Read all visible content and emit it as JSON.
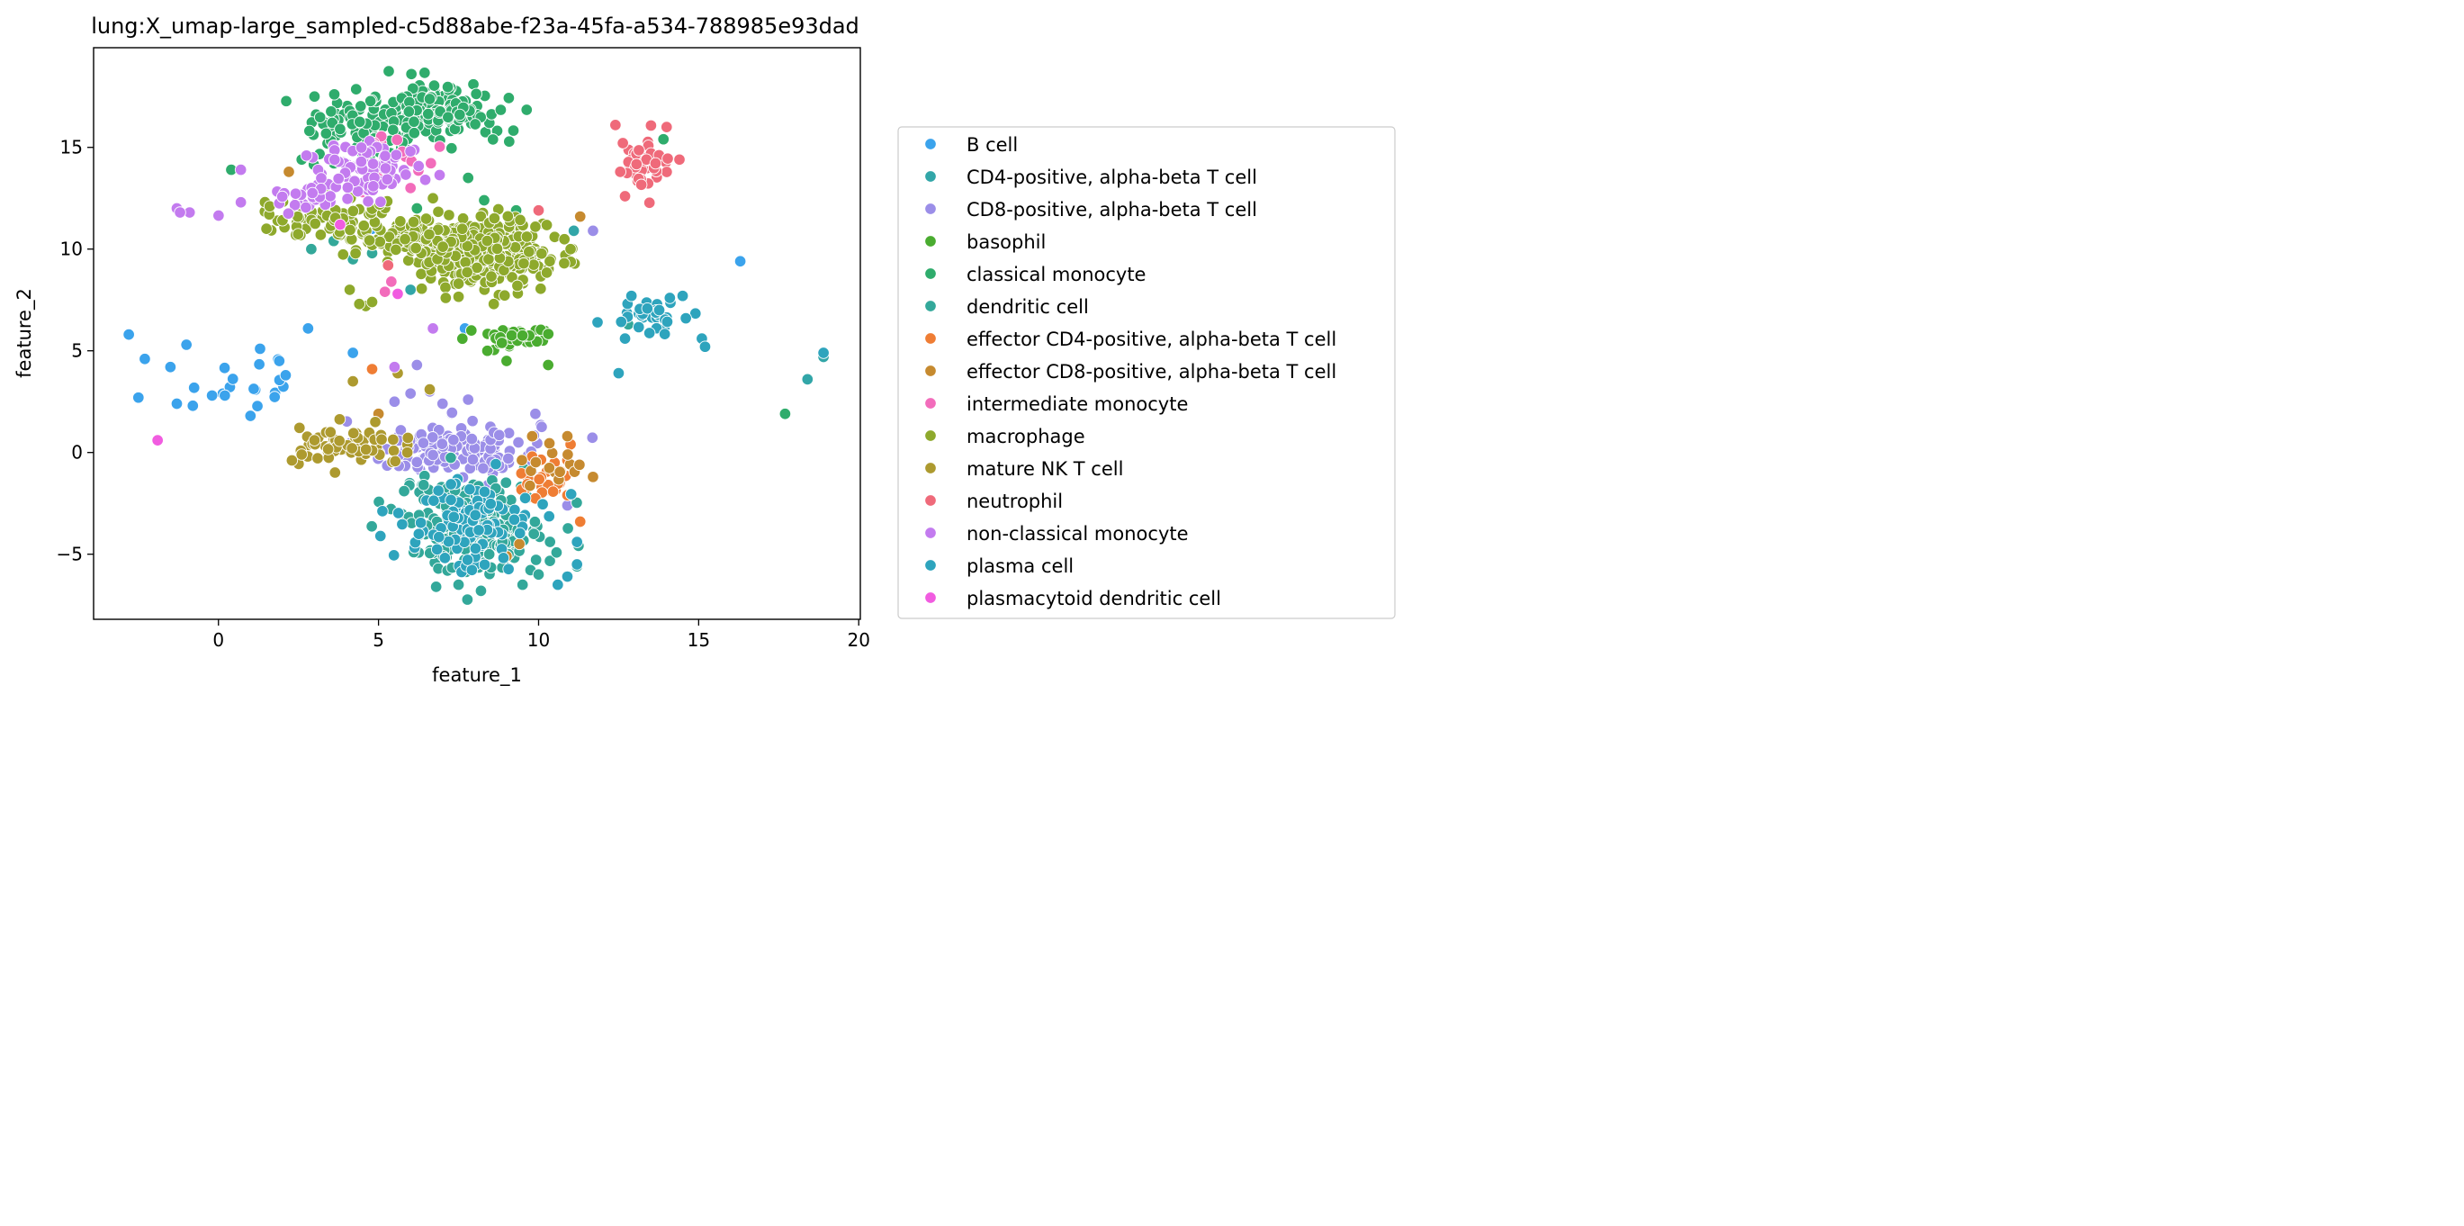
{
  "chart_data": {
    "type": "scatter",
    "title": "lung:X_umap-large_sampled-c5d88abe-f23a-45fa-a534-788985e93dad",
    "xlabel": "feature_1",
    "ylabel": "feature_2",
    "xlim": [
      -3.9,
      20.05
    ],
    "ylim": [
      -8.2,
      19.9
    ],
    "xticks": [
      0,
      5,
      10,
      15,
      20
    ],
    "xtick_labels": [
      "0",
      "5",
      "10",
      "15",
      "20"
    ],
    "yticks": [
      -5,
      0,
      5,
      10,
      15
    ],
    "ytick_labels": [
      "−5",
      "0",
      "5",
      "10",
      "15"
    ],
    "grid": false,
    "legend_placement": "outside-right",
    "series": [
      {
        "name": "B cell",
        "color": "#3ba3ec",
        "clusters": [
          {
            "cx": 0.9,
            "cy": 3.6,
            "sx": 1.1,
            "sy": 0.8,
            "n": 14
          }
        ],
        "points": [
          [
            -2.8,
            5.8
          ],
          [
            -2.3,
            4.6
          ],
          [
            -2.5,
            2.7
          ],
          [
            -1.5,
            4.2
          ],
          [
            -1.0,
            5.3
          ],
          [
            -1.3,
            2.4
          ],
          [
            -0.8,
            2.3
          ],
          [
            -0.2,
            2.8
          ],
          [
            0.2,
            2.8
          ],
          [
            1.0,
            1.8
          ],
          [
            2.1,
            3.8
          ],
          [
            2.8,
            6.1
          ],
          [
            1.3,
            5.1
          ],
          [
            1.9,
            4.5
          ],
          [
            4.2,
            4.9
          ],
          [
            16.3,
            9.4
          ],
          [
            7.7,
            6.1
          ],
          [
            4.8,
            11.0
          ]
        ]
      },
      {
        "name": "CD4-positive, alpha-beta T cell",
        "color": "#32a6a8",
        "clusters": [],
        "points": [
          [
            6.8,
            9.3
          ],
          [
            5.5,
            10.2
          ],
          [
            6.0,
            8.0
          ],
          [
            18.4,
            3.6
          ],
          [
            18.9,
            4.7
          ],
          [
            11.1,
            10.9
          ]
        ]
      },
      {
        "name": "CD8-positive, alpha-beta T cell",
        "color": "#9b8ee8",
        "clusters": [
          {
            "cx": 7.3,
            "cy": 0.2,
            "sx": 1.6,
            "sy": 0.8,
            "n": 140
          }
        ],
        "points": [
          [
            6.0,
            2.9
          ],
          [
            7.8,
            2.6
          ],
          [
            6.6,
            3.0
          ],
          [
            7.0,
            2.4
          ],
          [
            9.9,
            1.9
          ],
          [
            10.9,
            -2.6
          ],
          [
            11.7,
            10.9
          ],
          [
            5.5,
            2.5
          ],
          [
            6.2,
            4.3
          ]
        ]
      },
      {
        "name": "basophil",
        "color": "#4aac30",
        "clusters": [
          {
            "cx": 9.3,
            "cy": 5.7,
            "sx": 0.7,
            "sy": 0.3,
            "n": 45
          }
        ],
        "points": [
          [
            10.3,
            4.3
          ],
          [
            8.4,
            5.0
          ],
          [
            9.0,
            4.5
          ],
          [
            7.9,
            6.0
          ]
        ]
      },
      {
        "name": "classical monocyte",
        "color": "#2fac6c",
        "clusters": [
          {
            "cx": 6.6,
            "cy": 16.6,
            "sx": 1.4,
            "sy": 0.9,
            "n": 180
          },
          {
            "cx": 4.3,
            "cy": 15.8,
            "sx": 1.0,
            "sy": 1.1,
            "n": 50
          }
        ],
        "points": [
          [
            17.7,
            1.9
          ],
          [
            0.4,
            13.9
          ],
          [
            6.2,
            12.0
          ],
          [
            8.3,
            12.4
          ],
          [
            9.3,
            11.9
          ],
          [
            7.8,
            13.5
          ],
          [
            3.0,
            17.5
          ],
          [
            3.8,
            15.9
          ],
          [
            2.6,
            14.4
          ],
          [
            13.9,
            15.4
          ]
        ]
      },
      {
        "name": "dendritic cell",
        "color": "#33a89a",
        "clusters": [
          {
            "cx": 8.0,
            "cy": -3.6,
            "sx": 1.3,
            "sy": 1.3,
            "n": 240
          }
        ],
        "points": [
          [
            7.5,
            -6.5
          ],
          [
            8.2,
            -6.8
          ],
          [
            9.5,
            -6.5
          ],
          [
            10.0,
            -6.0
          ],
          [
            11.2,
            -5.6
          ],
          [
            6.8,
            -6.6
          ],
          [
            6.1,
            -4.9
          ],
          [
            5.8,
            -1.9
          ],
          [
            4.9,
            12.1
          ],
          [
            5.1,
            10.6
          ],
          [
            2.9,
            10.0
          ],
          [
            3.6,
            10.4
          ],
          [
            4.2,
            9.5
          ],
          [
            4.8,
            9.8
          ],
          [
            6.8,
            10.0
          ],
          [
            12.8,
            6.3
          ]
        ]
      },
      {
        "name": "effector CD4-positive, alpha-beta T cell",
        "color": "#ef7d34",
        "clusters": [
          {
            "cx": 10.3,
            "cy": -1.3,
            "sx": 0.6,
            "sy": 0.7,
            "n": 22
          }
        ],
        "points": [
          [
            11.3,
            -3.4
          ],
          [
            10.9,
            -2.1
          ],
          [
            10.5,
            -0.5
          ],
          [
            9.8,
            -0.2
          ],
          [
            4.8,
            4.1
          ],
          [
            11.0,
            0.4
          ]
        ]
      },
      {
        "name": "effector CD8-positive, alpha-beta T cell",
        "color": "#c68a2f",
        "clusters": [
          {
            "cx": 10.4,
            "cy": -0.7,
            "sx": 0.6,
            "sy": 0.6,
            "n": 14
          }
        ],
        "points": [
          [
            11.7,
            -1.2
          ],
          [
            9.0,
            -5.1
          ],
          [
            9.4,
            -4.5
          ],
          [
            2.2,
            13.8
          ],
          [
            11.3,
            11.6
          ],
          [
            5.0,
            1.9
          ],
          [
            9.8,
            0.8
          ],
          [
            10.9,
            0.8
          ]
        ]
      },
      {
        "name": "intermediate monocyte",
        "color": "#f26cbb",
        "clusters": [
          {
            "cx": 5.6,
            "cy": 14.6,
            "sx": 0.7,
            "sy": 0.7,
            "n": 14
          }
        ],
        "points": [
          [
            5.2,
            7.9
          ],
          [
            5.4,
            8.4
          ],
          [
            6.0,
            13.0
          ],
          [
            4.5,
            12.8
          ]
        ]
      },
      {
        "name": "macrophage",
        "color": "#8ea92c",
        "clusters": [
          {
            "cx": 8.4,
            "cy": 9.8,
            "sx": 1.1,
            "sy": 0.9,
            "n": 380
          },
          {
            "cx": 6.0,
            "cy": 10.6,
            "sx": 1.0,
            "sy": 0.6,
            "n": 110
          },
          {
            "cx": 3.6,
            "cy": 11.5,
            "sx": 1.3,
            "sy": 0.6,
            "n": 70
          }
        ],
        "points": [
          [
            4.6,
            7.2
          ],
          [
            4.8,
            7.4
          ],
          [
            4.4,
            7.3
          ],
          [
            4.1,
            8.0
          ],
          [
            7.5,
            8.3
          ],
          [
            7.1,
            7.6
          ],
          [
            8.6,
            7.3
          ],
          [
            10.8,
            9.3
          ],
          [
            9.9,
            11.1
          ],
          [
            11.0,
            10.0
          ],
          [
            1.5,
            11.0
          ],
          [
            1.6,
            12.1
          ],
          [
            6.7,
            12.5
          ]
        ]
      },
      {
        "name": "mature NK T cell",
        "color": "#ad9a2f",
        "clusters": [
          {
            "cx": 4.1,
            "cy": 0.3,
            "sx": 1.1,
            "sy": 0.5,
            "n": 60
          }
        ],
        "points": [
          [
            2.6,
            -0.1
          ],
          [
            3.0,
            0.6
          ],
          [
            4.9,
            1.5
          ],
          [
            6.6,
            3.1
          ],
          [
            4.2,
            3.5
          ],
          [
            5.6,
            3.9
          ],
          [
            3.5,
            1.0
          ],
          [
            5.9,
            0.0
          ]
        ]
      },
      {
        "name": "neutrophil",
        "color": "#ef6a7a",
        "clusters": [
          {
            "cx": 13.2,
            "cy": 14.1,
            "sx": 0.55,
            "sy": 0.7,
            "n": 42
          }
        ],
        "points": [
          [
            12.4,
            16.1
          ],
          [
            14.0,
            16.0
          ],
          [
            12.7,
            12.6
          ],
          [
            10.0,
            11.9
          ],
          [
            5.3,
            9.2
          ],
          [
            14.4,
            14.4
          ]
        ]
      },
      {
        "name": "non-classical monocyte",
        "color": "#c37bef",
        "clusters": [
          {
            "cx": 4.6,
            "cy": 13.9,
            "sx": 1.1,
            "sy": 0.8,
            "n": 80
          },
          {
            "cx": 3.0,
            "cy": 12.6,
            "sx": 0.9,
            "sy": 0.4,
            "n": 25
          }
        ],
        "points": [
          [
            0.7,
            13.9
          ],
          [
            -1.3,
            12.0
          ],
          [
            -0.9,
            11.8
          ],
          [
            -1.2,
            11.8
          ],
          [
            0.7,
            12.3
          ],
          [
            6.7,
            6.1
          ],
          [
            5.5,
            4.2
          ]
        ]
      },
      {
        "name": "plasma cell",
        "color": "#2ea4bd",
        "clusters": [
          {
            "cx": 13.6,
            "cy": 6.7,
            "sx": 0.5,
            "sy": 0.4,
            "n": 32
          },
          {
            "cx": 7.8,
            "cy": -3.6,
            "sx": 1.2,
            "sy": 1.3,
            "n": 100
          }
        ],
        "points": [
          [
            12.9,
            7.7
          ],
          [
            14.1,
            7.6
          ],
          [
            14.5,
            7.7
          ],
          [
            14.6,
            6.6
          ],
          [
            15.1,
            5.6
          ],
          [
            15.2,
            5.2
          ],
          [
            12.7,
            5.6
          ],
          [
            12.5,
            3.9
          ],
          [
            18.9,
            4.9
          ],
          [
            11.2,
            -4.4
          ],
          [
            11.2,
            -5.5
          ],
          [
            10.9,
            -6.1
          ],
          [
            10.6,
            -6.5
          ]
        ]
      },
      {
        "name": "plasmacytoid dendritic cell",
        "color": "#f15ce0",
        "clusters": [],
        "points": [
          [
            -1.9,
            0.6
          ],
          [
            5.6,
            7.8
          ],
          [
            3.8,
            11.2
          ]
        ]
      }
    ]
  }
}
